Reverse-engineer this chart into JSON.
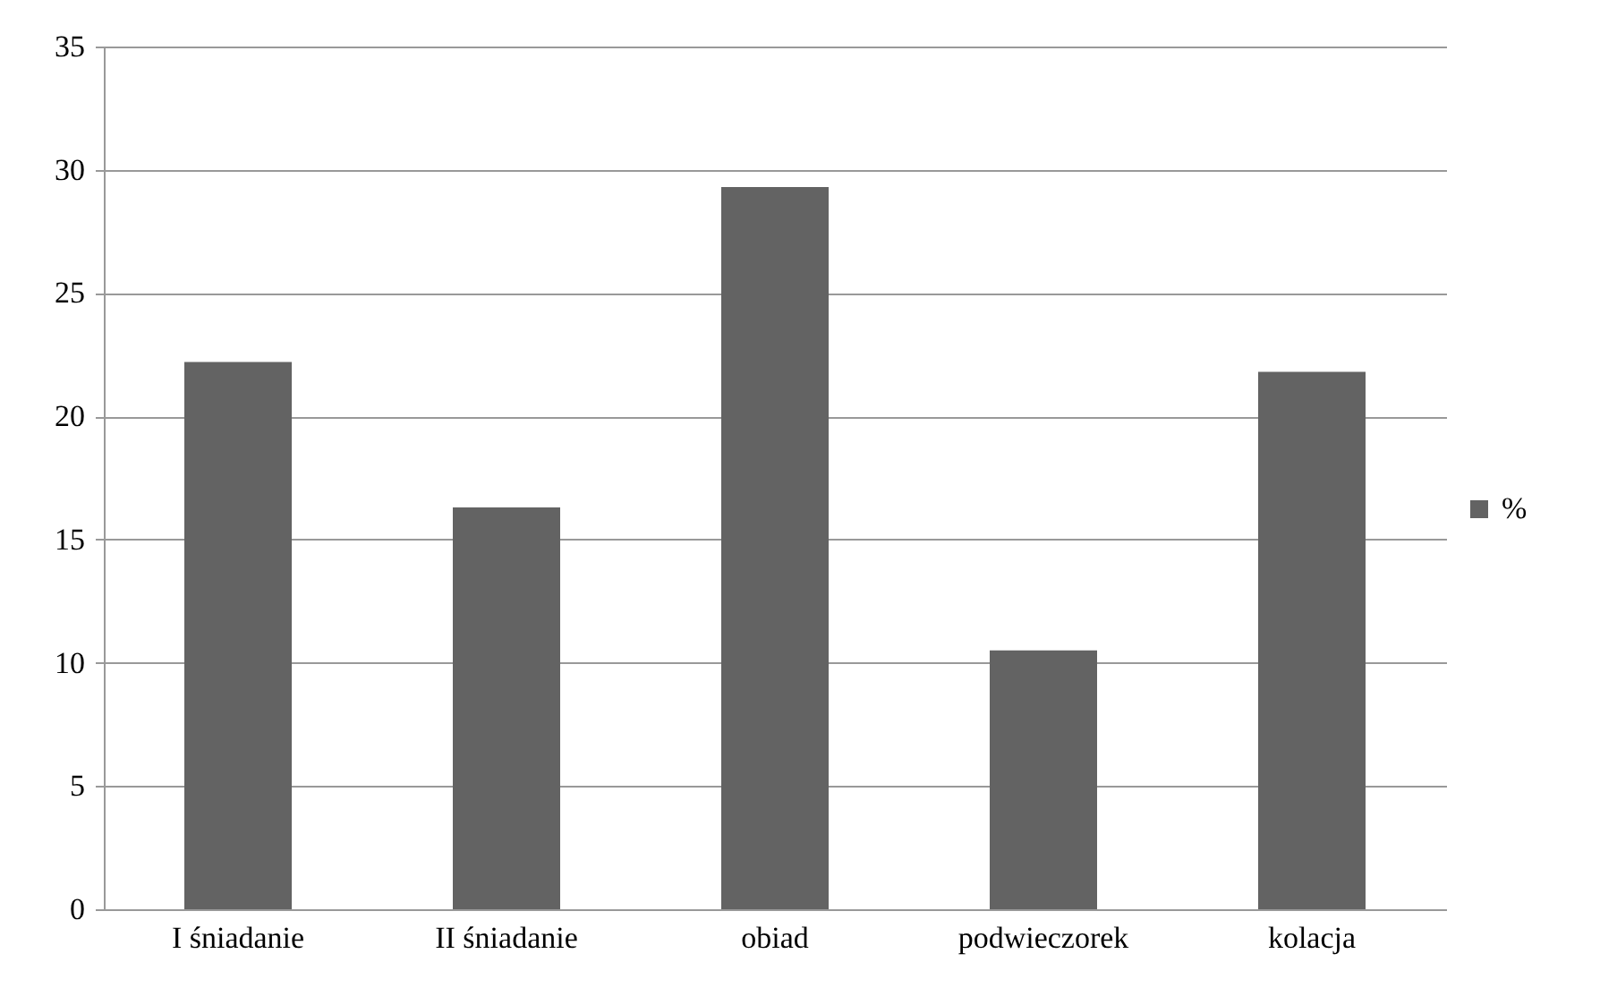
{
  "chart_data": {
    "type": "bar",
    "categories": [
      "I śniadanie",
      "II śniadanie",
      "obiad",
      "podwieczorek",
      "kolacja"
    ],
    "series": [
      {
        "name": "%",
        "color": "#636363",
        "values": [
          22.2,
          16.3,
          29.3,
          10.5,
          21.8
        ]
      }
    ],
    "ylim": [
      0,
      35
    ],
    "yticks": [
      0,
      5,
      10,
      15,
      20,
      25,
      30,
      35
    ],
    "grid": "y",
    "legend": "right"
  }
}
